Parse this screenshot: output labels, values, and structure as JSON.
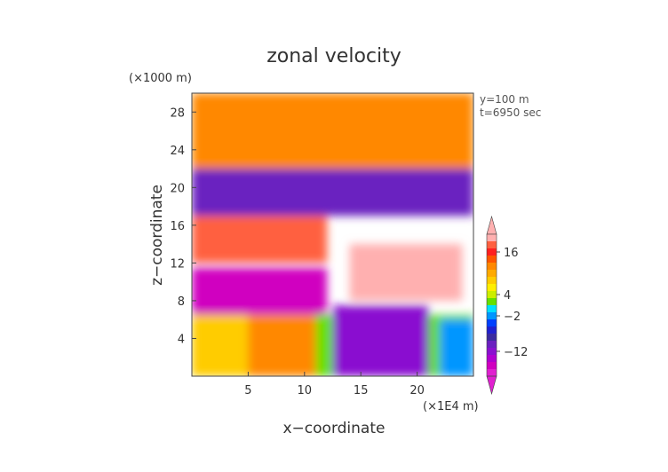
{
  "chart_data": {
    "type": "heatmap",
    "title": "zonal velocity",
    "xlabel": "x−coordinate",
    "ylabel": "z−coordinate",
    "x_unit": "(×1E4 m)",
    "y_unit": "(×1000 m)",
    "annotations": [
      "y=100 m",
      "t=6950 sec"
    ],
    "xlim": [
      0,
      25
    ],
    "ylim": [
      0,
      30
    ],
    "x_ticks": [
      5,
      10,
      15,
      20
    ],
    "x_tick_labels": [
      "5",
      "10",
      "15",
      "20"
    ],
    "y_ticks": [
      4,
      8,
      12,
      16,
      20,
      24,
      28
    ],
    "y_tick_labels": [
      "4",
      "8",
      "12",
      "16",
      "20",
      "24",
      "28"
    ],
    "colorbar": {
      "tick_values": [
        16,
        4,
        -2,
        -12
      ],
      "tick_labels": [
        "16",
        "4",
        "−2",
        "−12"
      ],
      "levels": [
        20,
        18,
        16,
        14,
        12,
        10,
        8,
        6,
        4,
        2,
        0,
        -2,
        -4,
        -6,
        -8,
        -10,
        -12,
        -14,
        -16,
        -18
      ],
      "colors": [
        "#ffb0b0",
        "#ff6040",
        "#ff2020",
        "#ff5500",
        "#ff8800",
        "#ffaa00",
        "#ffcc00",
        "#ffee00",
        "#ccee00",
        "#66e000",
        "#00e0ff",
        "#0096ff",
        "#0040ff",
        "#2020d0",
        "#3a2aa0",
        "#6a20c0",
        "#8a10d0",
        "#b000d0",
        "#d000c0",
        "#e020d0"
      ]
    },
    "regions": [
      {
        "x": [
          0,
          25
        ],
        "y": [
          0,
          6.5
        ],
        "value": 2
      },
      {
        "x": [
          0,
          5
        ],
        "y": [
          0,
          6.5
        ],
        "value": 8
      },
      {
        "x": [
          5,
          11
        ],
        "y": [
          0,
          6.5
        ],
        "value": 12
      },
      {
        "x": [
          12.5,
          21
        ],
        "y": [
          0,
          7.5
        ],
        "value": -12
      },
      {
        "x": [
          22,
          25
        ],
        "y": [
          0,
          6
        ],
        "value": -2
      },
      {
        "x": [
          0,
          12
        ],
        "y": [
          6.5,
          11.5
        ],
        "value": -16
      },
      {
        "x": [
          14,
          24
        ],
        "y": [
          8,
          14
        ],
        "value": 20
      },
      {
        "x": [
          0,
          12
        ],
        "y": [
          12,
          17
        ],
        "value": 18
      },
      {
        "x": [
          0,
          25
        ],
        "y": [
          17,
          30
        ],
        "value": -10
      },
      {
        "x": [
          0,
          25
        ],
        "y": [
          22,
          30
        ],
        "value": 12
      }
    ]
  }
}
